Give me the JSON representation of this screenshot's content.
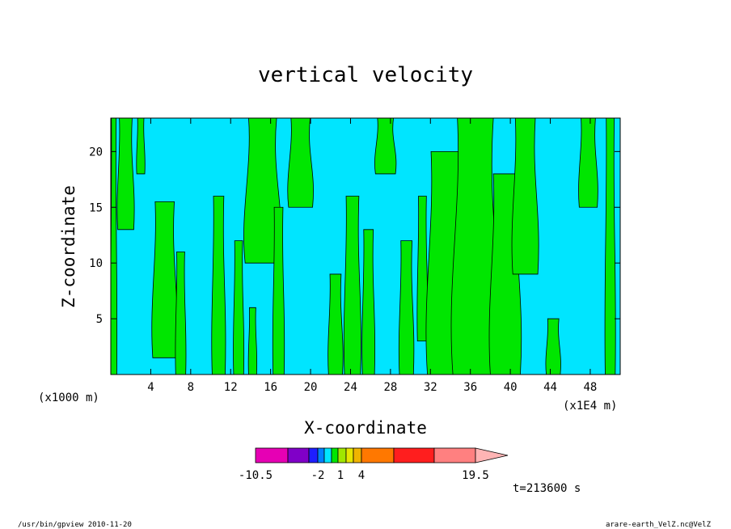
{
  "chart_data": {
    "type": "heatmap",
    "title": "vertical velocity",
    "xlabel": "X-coordinate",
    "ylabel": "Z-coordinate",
    "x_unit_left": "(x1000 m)",
    "x_unit_right": "(x1E4 m)",
    "xlim": [
      0,
      51
    ],
    "ylim": [
      0,
      23
    ],
    "x_ticks": [
      4,
      8,
      12,
      16,
      20,
      24,
      28,
      32,
      36,
      40,
      44,
      48
    ],
    "y_ticks": [
      5,
      10,
      15,
      20
    ],
    "field_colors": {
      "negative": "#00e5ff",
      "positive": "#00e600"
    },
    "positive_regions": [
      {
        "x": 0.3,
        "z0": 0,
        "z1": 23,
        "w": 0.6
      },
      {
        "x": 1.5,
        "z0": 13,
        "z1": 23,
        "w": 1.6
      },
      {
        "x": 3.0,
        "z0": 18,
        "z1": 23,
        "w": 0.8
      },
      {
        "x": 5.4,
        "z0": 1.5,
        "z1": 15.5,
        "w": 2.4
      },
      {
        "x": 7.0,
        "z0": 0,
        "z1": 11,
        "w": 1.0
      },
      {
        "x": 10.8,
        "z0": 0,
        "z1": 16,
        "w": 1.3
      },
      {
        "x": 12.8,
        "z0": 0,
        "z1": 12,
        "w": 1.0
      },
      {
        "x": 15.2,
        "z0": 10,
        "z1": 23,
        "w": 3.5
      },
      {
        "x": 14.2,
        "z0": 0,
        "z1": 6,
        "w": 0.8
      },
      {
        "x": 16.8,
        "z0": 0,
        "z1": 15,
        "w": 1.1
      },
      {
        "x": 19.0,
        "z0": 15,
        "z1": 23,
        "w": 2.4
      },
      {
        "x": 22.5,
        "z0": 0,
        "z1": 9,
        "w": 1.4
      },
      {
        "x": 24.2,
        "z0": 0,
        "z1": 16,
        "w": 1.6
      },
      {
        "x": 25.8,
        "z0": 0,
        "z1": 13,
        "w": 1.2
      },
      {
        "x": 27.5,
        "z0": 18,
        "z1": 23,
        "w": 2.0
      },
      {
        "x": 29.6,
        "z0": 0,
        "z1": 12,
        "w": 1.4
      },
      {
        "x": 31.2,
        "z0": 3,
        "z1": 16,
        "w": 1.0
      },
      {
        "x": 33.5,
        "z0": 0,
        "z1": 20,
        "w": 3.6
      },
      {
        "x": 36.5,
        "z0": 0,
        "z1": 23,
        "w": 4.5
      },
      {
        "x": 39.5,
        "z0": 0,
        "z1": 18,
        "w": 3.0
      },
      {
        "x": 41.5,
        "z0": 9,
        "z1": 23,
        "w": 2.5
      },
      {
        "x": 44.3,
        "z0": 0,
        "z1": 5,
        "w": 1.4
      },
      {
        "x": 47.8,
        "z0": 15,
        "z1": 23,
        "w": 1.8
      },
      {
        "x": 50.0,
        "z0": 0,
        "z1": 23,
        "w": 1.0
      }
    ],
    "colorbar": {
      "segments": [
        {
          "color": "#e600b4"
        },
        {
          "color": "#8000c8"
        },
        {
          "color": "#1e1eff"
        },
        {
          "color": "#0080ff"
        },
        {
          "color": "#00e5ff"
        },
        {
          "color": "#00e600"
        },
        {
          "color": "#a0e600"
        },
        {
          "color": "#e6e600"
        },
        {
          "color": "#f0b400"
        },
        {
          "color": "#ff7800"
        },
        {
          "color": "#ff1e1e"
        },
        {
          "color": "#ff8080"
        }
      ],
      "arrow_color": "#ffb4b4",
      "labels": [
        "-10.5",
        "-2",
        "1",
        "4",
        "19.5"
      ]
    }
  },
  "time_label": "t=213600 s",
  "footer_left": "/usr/bin/gpview   2010-11-20",
  "footer_right": "arare-earth_VelZ.nc@VelZ"
}
